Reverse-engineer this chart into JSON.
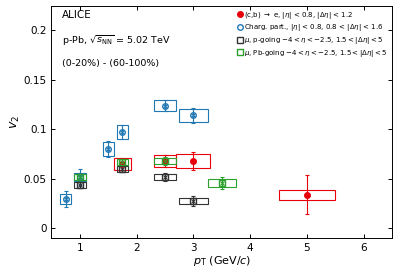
{
  "title_text": "ALICE",
  "subtitle1": "p-Pb, $\\sqrt{s_{\\rm NN}}$ = 5.02 TeV",
  "subtitle2": "(0-20%) - (60-100%)",
  "xlabel": "$p_{\\rm T}$ (GeV/$c$)",
  "ylabel": "$v_{2}$",
  "xlim": [
    0.5,
    6.5
  ],
  "ylim": [
    -0.01,
    0.225
  ],
  "hfe": {
    "color": "#e8000b",
    "x": [
      1.75,
      2.5,
      3.0,
      5.0
    ],
    "y": [
      0.065,
      0.068,
      0.068,
      0.034
    ],
    "yerr_stat": [
      0.006,
      0.006,
      0.009,
      0.02
    ],
    "xerr_syst": [
      0.15,
      0.2,
      0.3,
      0.5
    ],
    "yerr_syst": [
      0.006,
      0.006,
      0.007,
      0.005
    ]
  },
  "charg": {
    "color": "#1f77b4",
    "x": [
      0.75,
      1.0,
      1.5,
      1.75,
      2.5,
      3.0
    ],
    "y": [
      0.03,
      0.052,
      0.08,
      0.097,
      0.124,
      0.114
    ],
    "yerr_stat": [
      0.008,
      0.008,
      0.008,
      0.007,
      0.006,
      0.008
    ],
    "xerr_syst": [
      0.1,
      0.1,
      0.1,
      0.1,
      0.2,
      0.25
    ],
    "yerr_syst": [
      0.005,
      0.004,
      0.007,
      0.007,
      0.006,
      0.007
    ]
  },
  "mu_pgoing": {
    "color": "#333333",
    "x": [
      1.0,
      1.75,
      2.5,
      3.0
    ],
    "y": [
      0.044,
      0.06,
      0.052,
      0.028
    ],
    "yerr_stat": [
      0.003,
      0.003,
      0.004,
      0.005
    ],
    "xerr_syst": [
      0.1,
      0.1,
      0.2,
      0.25
    ],
    "yerr_syst": [
      0.003,
      0.003,
      0.003,
      0.003
    ]
  },
  "mu_pbgoing": {
    "color": "#2ca02c",
    "x": [
      1.0,
      1.75,
      2.5,
      3.5
    ],
    "y": [
      0.052,
      0.067,
      0.068,
      0.046
    ],
    "yerr_stat": [
      0.003,
      0.003,
      0.004,
      0.006
    ],
    "xerr_syst": [
      0.1,
      0.1,
      0.2,
      0.25
    ],
    "yerr_syst": [
      0.003,
      0.003,
      0.003,
      0.004
    ]
  },
  "legend_labels": [
    "(c,b) $\\to$ e, $|\\eta|$ < 0.8, $|\\Delta\\eta|$ < 1.2",
    "Charg. part., $|\\eta|$ < 0.8, 0.8 < $|\\Delta\\eta|$ < 1.6",
    "$\\mu$, p-going $-4 < \\eta < -2.5$, $1.5 < |\\Delta\\eta| < 5$",
    "$\\mu$, Pb-going $-4 < \\eta < -2.5$, $1.5 < |\\Delta\\eta| < 5$"
  ]
}
